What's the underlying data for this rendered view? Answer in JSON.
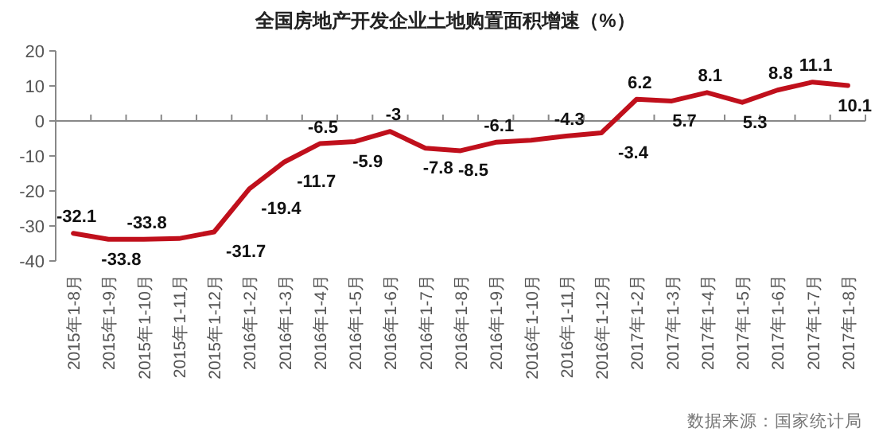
{
  "chart_data": {
    "type": "line",
    "title": "全国房地产开发企业土地购置面积增速（%）",
    "categories": [
      "2015年1-8月",
      "2015年1-9月",
      "2015年1-10月",
      "2015年1-11月",
      "2015年1-12月",
      "2016年1-2月",
      "2016年1-3月",
      "2016年1-4月",
      "2016年1-5月",
      "2016年1-6月",
      "2016年1-7月",
      "2016年1-8月",
      "2016年1-9月",
      "2016年1-10月",
      "2016年1-11月",
      "2016年1-12月",
      "2017年1-2月",
      "2017年1-3月",
      "2017年1-4月",
      "2017年1-5月",
      "2017年1-6月",
      "2017年1-7月",
      "2017年1-8月"
    ],
    "series": [
      {
        "color": "#c0101c",
        "values": [
          -32.1,
          -33.8,
          -33.8,
          -33.6,
          -31.7,
          -19.4,
          -11.7,
          -6.5,
          -5.9,
          -3,
          -7.8,
          -8.5,
          -6.1,
          -5.5,
          -4.3,
          -3.4,
          6.2,
          5.7,
          8.1,
          5.3,
          8.8,
          11.1,
          10.1
        ],
        "value_labels": [
          "-32.1",
          "-33.8",
          "-33.8",
          null,
          "-31.7",
          "-19.4",
          "-11.7",
          "-6.5",
          "-5.9",
          "-3",
          "-7.8",
          "-8.5",
          "-6.1",
          null,
          "-4.3",
          "-3.4",
          "6.2",
          "5.7",
          "8.1",
          "5.3",
          "8.8",
          "11.1",
          "10.1"
        ]
      }
    ],
    "ylim": [
      -40,
      20
    ],
    "yticks": [
      -40,
      -30,
      -20,
      -10,
      0,
      10,
      20
    ],
    "marker": "none",
    "line_style": "solid",
    "annotations": [
      "数据来源：国家统计局"
    ]
  }
}
